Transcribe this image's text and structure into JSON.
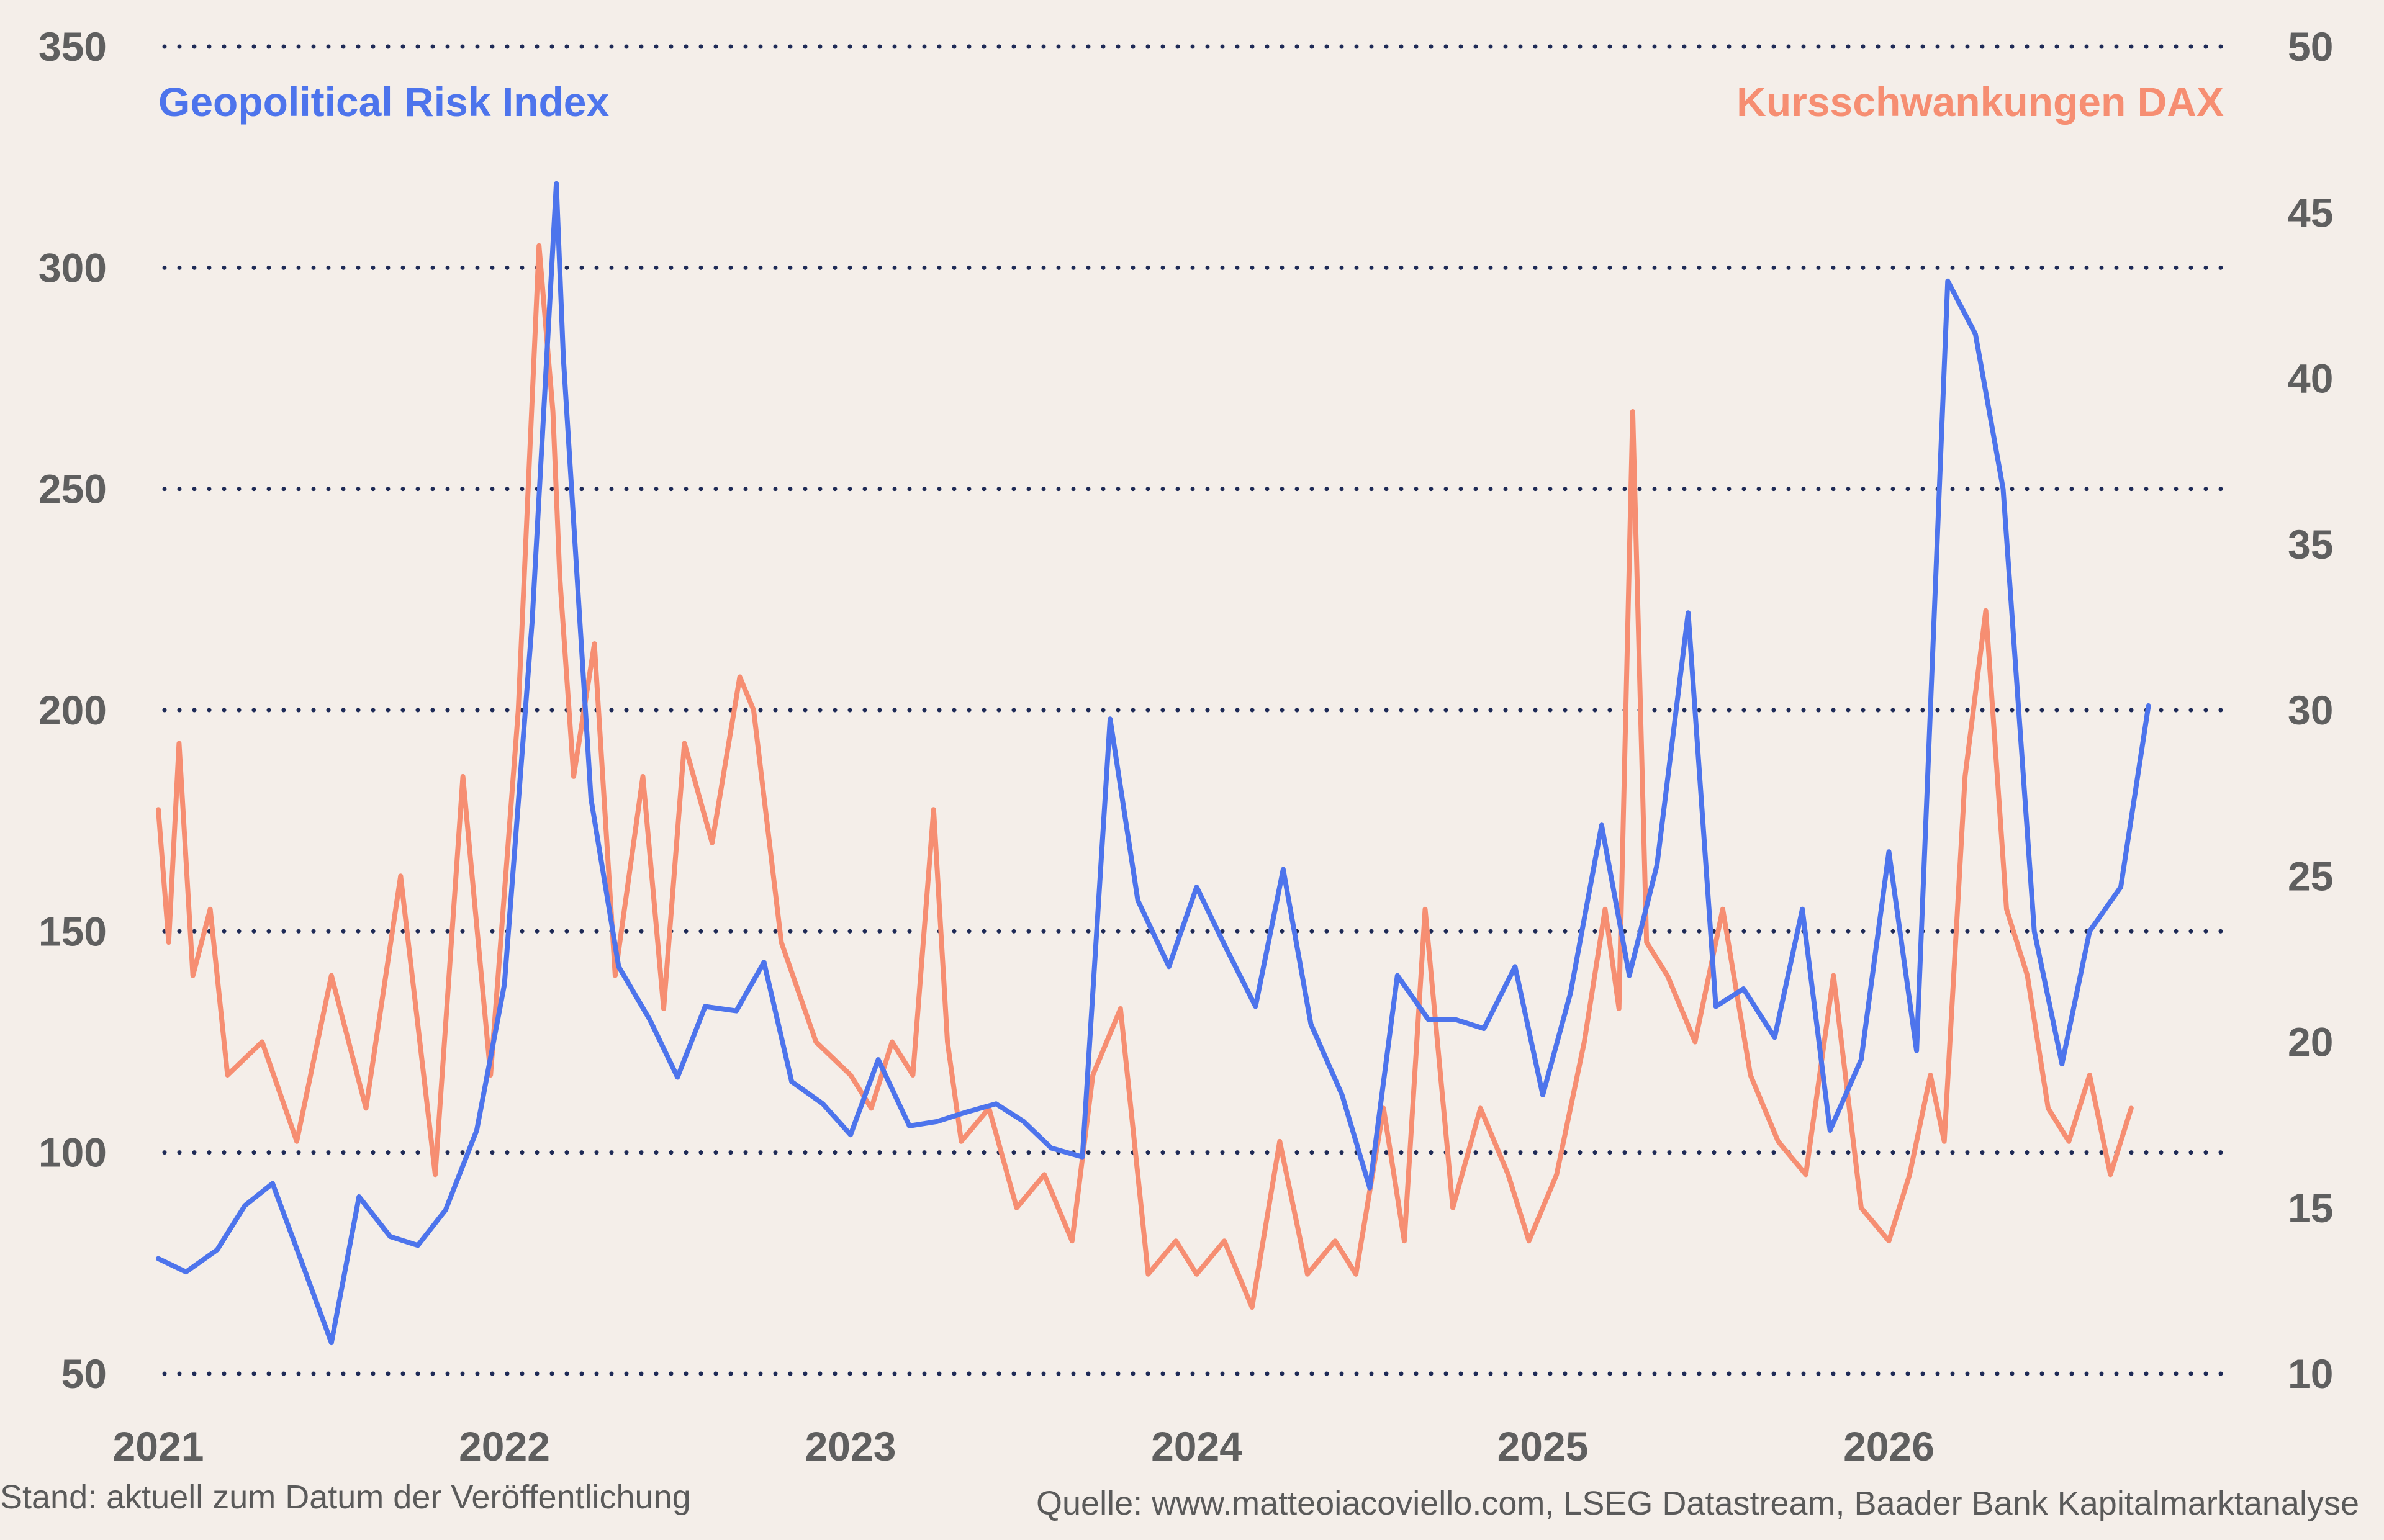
{
  "chart_data": {
    "type": "line",
    "x_axis": {
      "ticks": [
        "2021",
        "2022",
        "2023",
        "2024",
        "2025",
        "2026"
      ],
      "range": [
        2021.0,
        2027.0
      ]
    },
    "y_left": {
      "ticks": [
        "50",
        "100",
        "150",
        "200",
        "250",
        "300",
        "350"
      ],
      "range": [
        50,
        350
      ]
    },
    "y_right": {
      "ticks": [
        "10",
        "15",
        "20",
        "25",
        "30",
        "35",
        "40",
        "45",
        "50"
      ],
      "range": [
        10,
        50
      ]
    },
    "grid": "horizontal-dotted",
    "legend_position": "top",
    "series": [
      {
        "name": "Geopolitical Risk Index",
        "axis": "left",
        "color": "#4d74ec",
        "x": [
          2021.0,
          2021.08,
          2021.17,
          2021.25,
          2021.33,
          2021.42,
          2021.5,
          2021.58,
          2021.67,
          2021.75,
          2021.83,
          2021.92,
          2022.0,
          2022.08,
          2022.15,
          2022.17,
          2022.25,
          2022.33,
          2022.42,
          2022.5,
          2022.58,
          2022.67,
          2022.75,
          2022.83,
          2022.92,
          2023.0,
          2023.08,
          2023.17,
          2023.25,
          2023.33,
          2023.42,
          2023.5,
          2023.58,
          2023.67,
          2023.75,
          2023.83,
          2023.92,
          2024.0,
          2024.08,
          2024.17,
          2024.25,
          2024.33,
          2024.42,
          2024.5,
          2024.58,
          2024.67,
          2024.75,
          2024.83,
          2024.92,
          2025.0,
          2025.08,
          2025.17,
          2025.25,
          2025.33,
          2025.42,
          2025.5,
          2025.58,
          2025.67,
          2025.75,
          2025.83,
          2025.92,
          2026.0,
          2026.08,
          2026.17,
          2026.25,
          2026.33,
          2026.42,
          2026.5,
          2026.58,
          2026.67,
          2026.75
        ],
        "values": [
          76,
          73,
          78,
          88,
          93,
          74,
          57,
          90,
          81,
          79,
          87,
          105,
          138,
          220,
          319,
          280,
          180,
          142,
          130,
          117,
          133,
          132,
          143,
          116,
          111,
          104,
          121,
          106,
          107,
          109,
          111,
          107,
          101,
          99,
          198,
          157,
          142,
          160,
          147,
          133,
          164,
          129,
          113,
          92,
          140,
          130,
          130,
          128,
          142,
          113,
          136,
          174,
          140,
          165,
          222,
          133,
          137,
          126,
          155,
          105,
          121,
          168,
          123,
          297,
          285,
          250,
          150,
          120,
          150,
          160,
          201
        ]
      },
      {
        "name": "Kursschwankungen DAX",
        "axis": "right",
        "color": "#f68e72",
        "x": [
          2021.0,
          2021.03,
          2021.06,
          2021.1,
          2021.15,
          2021.2,
          2021.3,
          2021.4,
          2021.5,
          2021.6,
          2021.7,
          2021.8,
          2021.88,
          2021.96,
          2022.04,
          2022.1,
          2022.14,
          2022.16,
          2022.2,
          2022.26,
          2022.32,
          2022.4,
          2022.46,
          2022.52,
          2022.6,
          2022.68,
          2022.72,
          2022.8,
          2022.9,
          2023.0,
          2023.06,
          2023.12,
          2023.18,
          2023.24,
          2023.28,
          2023.32,
          2023.4,
          2023.48,
          2023.56,
          2023.64,
          2023.7,
          2023.78,
          2023.86,
          2023.94,
          2024.0,
          2024.08,
          2024.16,
          2024.24,
          2024.32,
          2024.4,
          2024.46,
          2024.54,
          2024.6,
          2024.66,
          2024.74,
          2024.82,
          2024.9,
          2024.96,
          2025.04,
          2025.12,
          2025.18,
          2025.22,
          2025.26,
          2025.3,
          2025.36,
          2025.44,
          2025.52,
          2025.6,
          2025.68,
          2025.76,
          2025.84,
          2025.92,
          2026.0,
          2026.06,
          2026.12,
          2026.16,
          2026.22,
          2026.28,
          2026.34,
          2026.4,
          2026.46,
          2026.52,
          2026.58,
          2026.64,
          2026.7
        ],
        "values": [
          27,
          23,
          29,
          22,
          24,
          19,
          20,
          17,
          22,
          18,
          25,
          16,
          28,
          19,
          30,
          44,
          39,
          34,
          28,
          32,
          22,
          28,
          21,
          29,
          26,
          31,
          30,
          23,
          20,
          19,
          18,
          20,
          19,
          27,
          20,
          17,
          18,
          15,
          16,
          14,
          19,
          21,
          13,
          14,
          13,
          14,
          12,
          17,
          13,
          14,
          13,
          18,
          14,
          24,
          15,
          18,
          16,
          14,
          16,
          20,
          24,
          21,
          39,
          23,
          22,
          20,
          24,
          19,
          17,
          16,
          22,
          15,
          14,
          16,
          19,
          17,
          28,
          33,
          24,
          22,
          18,
          17,
          19,
          16,
          18
        ]
      }
    ]
  },
  "legend": {
    "left_label": "Geopolitical Risk Index",
    "right_label": "Kursschwankungen DAX"
  },
  "footer": {
    "left": "Stand: aktuell zum Datum der Veröffentlichung",
    "right": "Quelle: www.matteoiacoviello.com, LSEG Datastream, Baader Bank Kapitalmarktanalyse"
  },
  "colors": {
    "background": "#f4eee9",
    "grid": "#1e2a56",
    "tick_text": "#5f5f5f"
  }
}
